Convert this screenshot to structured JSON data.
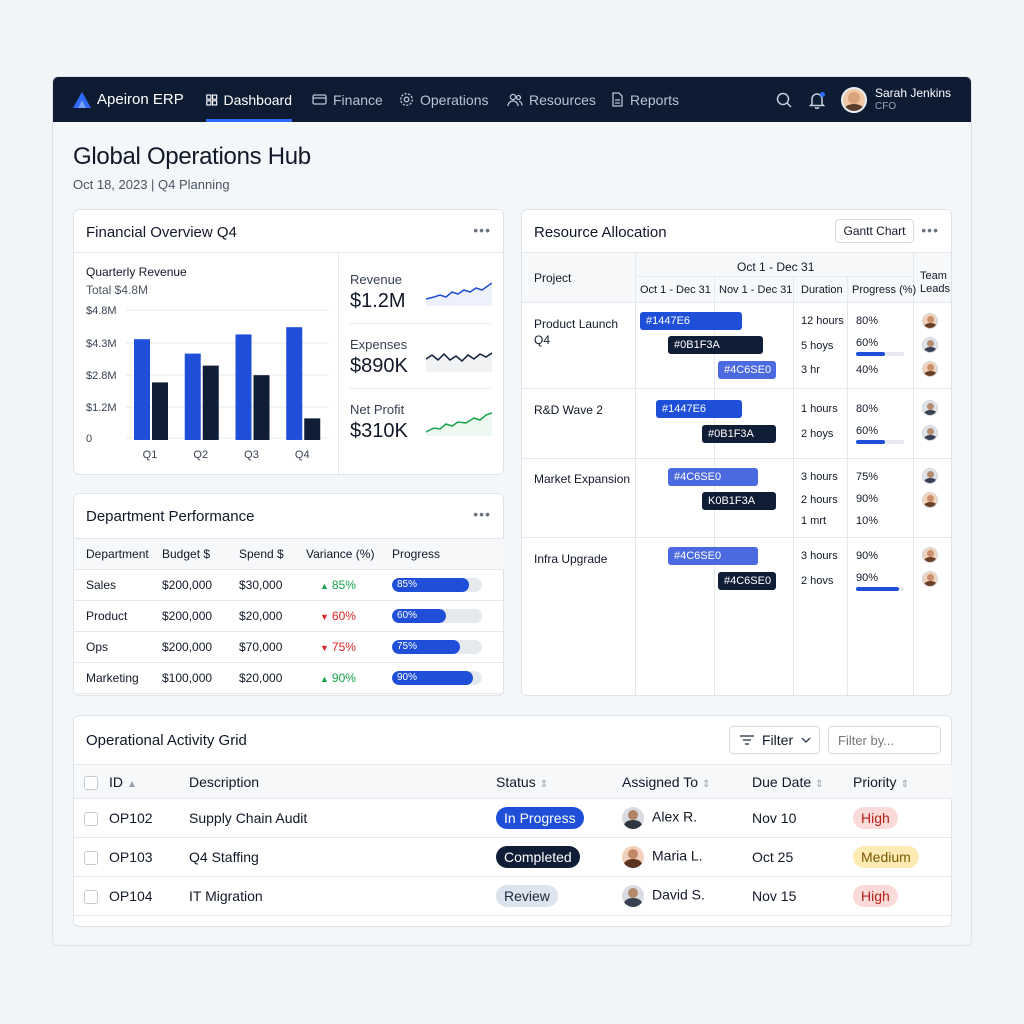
{
  "nav": {
    "brand": "Apeiron ERP",
    "items": [
      {
        "label": "Dashboard",
        "icon": "grid-icon"
      },
      {
        "label": "Finance",
        "icon": "wallet-icon"
      },
      {
        "label": "Operations",
        "icon": "gear-icon"
      },
      {
        "label": "Resources",
        "icon": "users-icon"
      },
      {
        "label": "Reports",
        "icon": "document-icon"
      }
    ],
    "user": {
      "name": "Sarah Jenkins",
      "role": "CFO"
    }
  },
  "page": {
    "title": "Global Operations Hub",
    "subtitle": "Oct 18, 2023 | Q4 Planning"
  },
  "financial": {
    "title": "Financial Overview Q4",
    "chart_title": "Quarterly Revenue",
    "chart_total": "Total $4.8M",
    "yticks": [
      "$4.8M",
      "$4.3M",
      "$2.8M",
      "$1.2M",
      "0"
    ],
    "metrics": [
      {
        "label": "Revenue",
        "value": "$1.2M"
      },
      {
        "label": "Expenses",
        "value": "$890K"
      },
      {
        "label": "Net Profit",
        "value": "$310K"
      }
    ]
  },
  "chart_data": {
    "type": "bar",
    "title": "Quarterly Revenue",
    "categories": [
      "Q1",
      "Q2",
      "Q3",
      "Q4"
    ],
    "series": [
      {
        "values": [
          4.2,
          3.6,
          4.4,
          4.7
        ]
      },
      {
        "values": [
          2.4,
          3.1,
          2.7,
          0.9
        ]
      }
    ],
    "ylim": [
      0,
      5.5
    ],
    "colors": [
      "#1f4fd8",
      "#0f1d36"
    ]
  },
  "department": {
    "title": "Department Performance",
    "headers": [
      "Department",
      "Budget $",
      "Spend $",
      "Variance (%)",
      "Progress"
    ],
    "rows": [
      {
        "dept": "Sales",
        "budget": "$200,000",
        "spend": "$30,000",
        "var": "85%",
        "dir": "up",
        "progress": "85%",
        "pct": 85
      },
      {
        "dept": "Product",
        "budget": "$200,000",
        "spend": "$20,000",
        "var": "60%",
        "dir": "down",
        "progress": "60%",
        "pct": 60
      },
      {
        "dept": "Ops",
        "budget": "$200,000",
        "spend": "$70,000",
        "var": "75%",
        "dir": "down",
        "progress": "75%",
        "pct": 75
      },
      {
        "dept": "Marketing",
        "budget": "$100,000",
        "spend": "$20,000",
        "var": "90%",
        "dir": "up",
        "progress": "90%",
        "pct": 90
      }
    ]
  },
  "resource": {
    "title": "Resource Allocation",
    "gantt_button": "Gantt Chart",
    "col_project": "Project",
    "col_range": "Oct 1 - Dec 31",
    "col_oct": "Oct 1 - Dec 31",
    "col_nov": "Nov 1 - Dec 31",
    "col_duration": "Duration",
    "col_progress": "Progress (%)",
    "col_leads": "Team Leads",
    "projects": [
      {
        "name": "Product Launch Q4",
        "tasks": [
          {
            "bar": "#1447E6",
            "color": "#1f4fd8",
            "duration": "12 hours",
            "progress": "80%"
          },
          {
            "bar": "#0B1F3A",
            "color": "#0f1d36",
            "duration": "5 hoys",
            "progress": "60%",
            "pct": 60
          },
          {
            "bar": "#4C6SE0",
            "color": "#4c6ae0",
            "duration": "3 hr",
            "progress": "40%"
          }
        ]
      },
      {
        "name": "R&D Wave 2",
        "tasks": [
          {
            "bar": "#1447E6",
            "color": "#1f4fd8",
            "duration": "1 hours",
            "progress": "80%"
          },
          {
            "bar": "#0B1F3A",
            "color": "#0f1d36",
            "duration": "2 hoys",
            "progress": "60%",
            "pct": 60
          }
        ]
      },
      {
        "name": "Market Expansion",
        "tasks": [
          {
            "bar": "#4C6SE0",
            "color": "#4c6ae0",
            "duration": "3 hours",
            "progress": "75%"
          },
          {
            "bar": "K0B1F3A",
            "color": "#0f1d36",
            "duration": "2 hours",
            "progress": "90%"
          },
          {
            "bar": "",
            "color": "",
            "duration": "1 mrt",
            "progress": "10%"
          }
        ]
      },
      {
        "name": "Infra Upgrade",
        "tasks": [
          {
            "bar": "#4C6SE0",
            "color": "#4c6ae0",
            "duration": "3 hours",
            "progress": "90%"
          },
          {
            "bar": "#4C6SE0",
            "color": "#0f1d36",
            "duration": "2 hovs",
            "progress": "90%",
            "pct": 90
          }
        ]
      }
    ]
  },
  "activity": {
    "title": "Operational Activity Grid",
    "filter_label": "Filter",
    "filter_placeholder": "Filter by...",
    "headers": [
      "ID",
      "Description",
      "Status",
      "Assigned To",
      "Due Date",
      "Priority"
    ],
    "rows": [
      {
        "id": "OP102",
        "desc": "Supply Chain Audit",
        "status": "In Progress",
        "status_kind": "inprog",
        "assignee": "Alex R.",
        "due": "Nov 10",
        "priority": "High",
        "prio_kind": "high"
      },
      {
        "id": "OP103",
        "desc": "Q4 Staffing",
        "status": "Completed",
        "status_kind": "done",
        "assignee": "Maria L.",
        "due": "Oct 25",
        "priority": "Medium",
        "prio_kind": "med"
      },
      {
        "id": "OP104",
        "desc": "IT Migration",
        "status": "Review",
        "status_kind": "review",
        "assignee": "David S.",
        "due": "Nov 15",
        "priority": "High",
        "prio_kind": "high"
      }
    ]
  }
}
